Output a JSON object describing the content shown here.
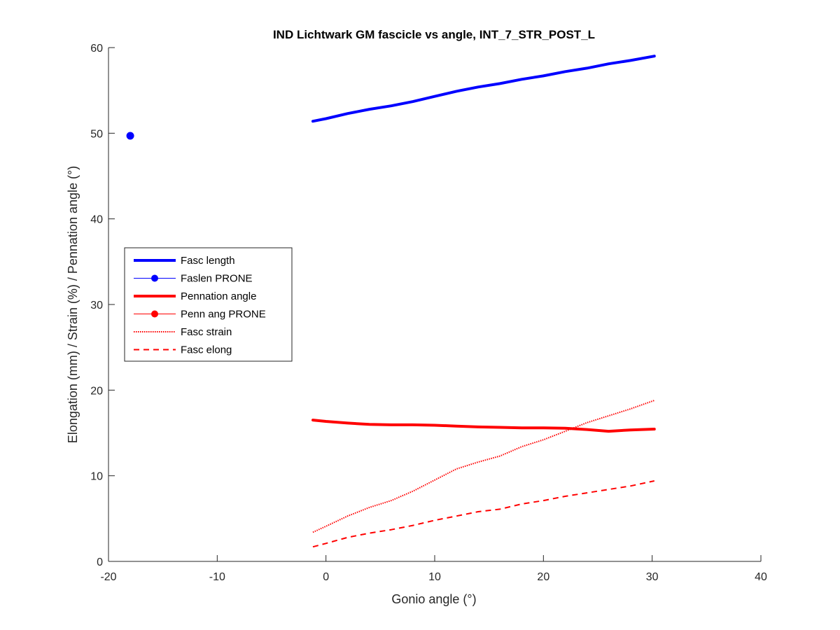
{
  "chart_data": {
    "type": "line",
    "title": "IND Lichtwark GM fascicle vs angle, INT_7_STR_POST_L",
    "xlabel": "Gonio angle (°)",
    "ylabel": "Elongation (mm) / Strain (%) / Pennation angle (°)",
    "xlim": [
      -20,
      40
    ],
    "ylim": [
      0,
      60
    ],
    "xticks": [
      "-20",
      "-10",
      "0",
      "10",
      "20",
      "30",
      "40"
    ],
    "yticks": [
      "0",
      "10",
      "20",
      "30",
      "40",
      "50",
      "60"
    ],
    "legend_position": "center-left",
    "series": [
      {
        "name": "Fasc length",
        "style": "solid-thick",
        "color": "#0000ff",
        "x": [
          -1.2,
          0,
          2,
          4,
          6,
          8,
          10,
          12,
          14,
          16,
          18,
          20,
          22,
          24,
          26,
          28,
          30.2
        ],
        "y": [
          51.4,
          51.7,
          52.3,
          52.8,
          53.2,
          53.7,
          54.3,
          54.9,
          55.4,
          55.8,
          56.3,
          56.7,
          57.2,
          57.6,
          58.1,
          58.5,
          59.0
        ]
      },
      {
        "name": "Faslen PRONE",
        "style": "marker",
        "color": "#0000ff",
        "x": [
          -18.0
        ],
        "y": [
          49.7
        ]
      },
      {
        "name": "Pennation angle",
        "style": "solid-thick",
        "color": "#ff0000",
        "x": [
          -1.2,
          0,
          2,
          4,
          6,
          8,
          10,
          12,
          14,
          16,
          18,
          20,
          22,
          24,
          26,
          28,
          30.2
        ],
        "y": [
          16.5,
          16.35,
          16.15,
          16.0,
          15.95,
          15.95,
          15.9,
          15.8,
          15.7,
          15.65,
          15.6,
          15.6,
          15.55,
          15.4,
          15.2,
          15.35,
          15.45
        ]
      },
      {
        "name": "Penn ang PRONE",
        "style": "marker",
        "color": "#ff0000",
        "x": [],
        "y": []
      },
      {
        "name": "Fasc strain",
        "style": "dotted",
        "color": "#ff0000",
        "x": [
          -1.2,
          0,
          2,
          4,
          6,
          8,
          10,
          12,
          14,
          16,
          18,
          20,
          22,
          24,
          26,
          28,
          30.2
        ],
        "y": [
          3.4,
          4.1,
          5.3,
          6.3,
          7.1,
          8.2,
          9.5,
          10.8,
          11.6,
          12.3,
          13.4,
          14.2,
          15.2,
          16.2,
          17.0,
          17.8,
          18.8
        ]
      },
      {
        "name": "Fasc elong",
        "style": "dashed",
        "color": "#ff0000",
        "x": [
          -1.2,
          0,
          2,
          4,
          6,
          8,
          10,
          12,
          14,
          16,
          18,
          20,
          22,
          24,
          26,
          28,
          30.2
        ],
        "y": [
          1.7,
          2.1,
          2.8,
          3.3,
          3.7,
          4.2,
          4.8,
          5.3,
          5.8,
          6.1,
          6.7,
          7.1,
          7.6,
          8.0,
          8.4,
          8.8,
          9.4
        ]
      }
    ]
  }
}
